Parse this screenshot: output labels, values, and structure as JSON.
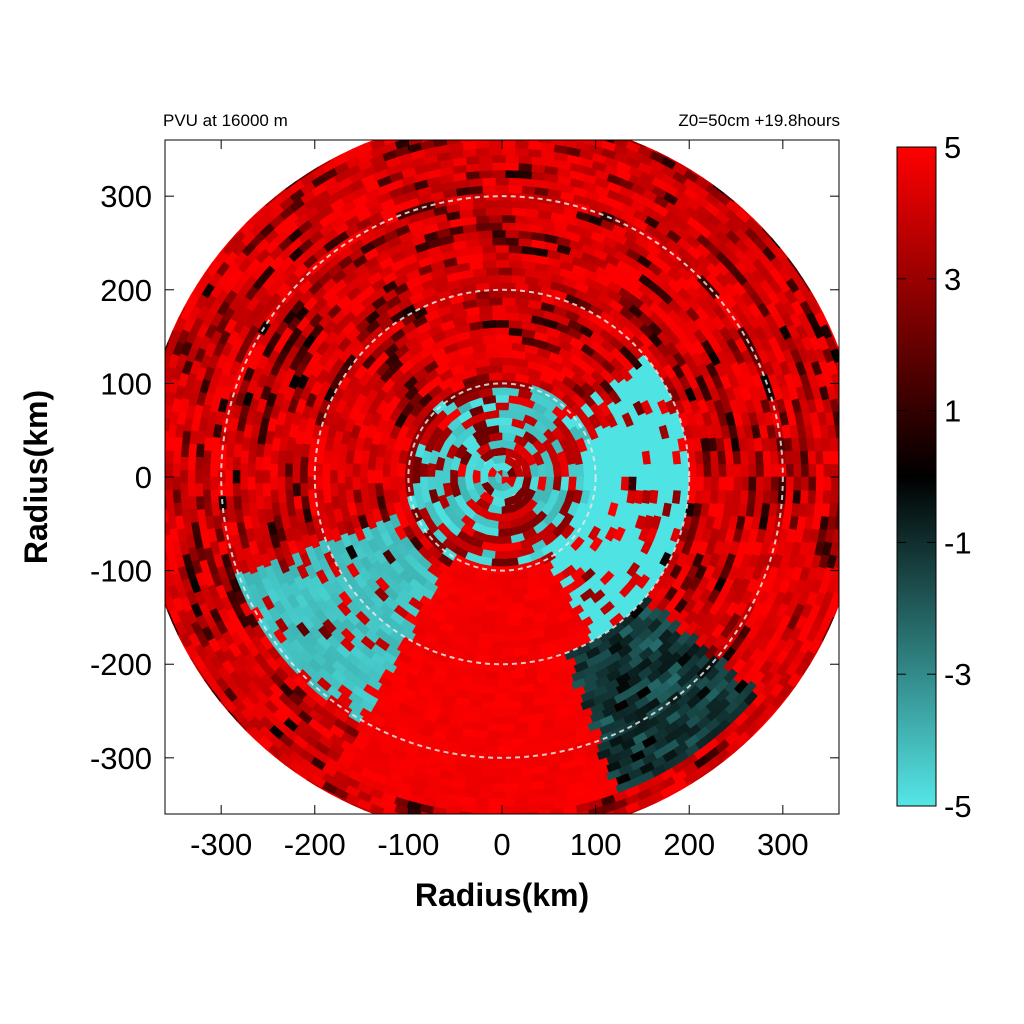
{
  "chart_data": {
    "type": "heatmap",
    "title_left": "PVU at 16000 m",
    "title_right": "Z0=50cm  +19.8hours",
    "xlabel": "Radius(km)",
    "ylabel": "Radius(km)",
    "xlim": [
      -360,
      360
    ],
    "ylim": [
      -360,
      360
    ],
    "xticks": [
      "-300",
      "-200",
      "-100",
      "0",
      "100",
      "200",
      "300"
    ],
    "yticks": [
      "300",
      "200",
      "100",
      "0",
      "-100",
      "-200",
      "-300"
    ],
    "domain_radius_km": 385,
    "range_rings_km": [
      100,
      200,
      300
    ],
    "colorbar": {
      "min": -5,
      "max": 5,
      "ticks": [
        "5",
        "3",
        "1",
        "-1",
        "-3",
        "-5"
      ],
      "colors": {
        "low": "#4fe3e3",
        "mid": "#000000",
        "high": "#ff0000"
      }
    },
    "field_features": [
      {
        "label": "inner core mixed positive/negative PV",
        "r_km": [
          0,
          100
        ],
        "value_range": [
          -5,
          5
        ]
      },
      {
        "label": "negative PV band, east",
        "azimuth_deg": [
          -60,
          40
        ],
        "r_km": [
          90,
          200
        ],
        "value": -5
      },
      {
        "label": "negative PV patches, southwest",
        "azimuth_deg": [
          200,
          250
        ],
        "r_km": [
          120,
          300
        ],
        "value": -4
      },
      {
        "label": "strong positive PV, south",
        "azimuth_deg": [
          240,
          300
        ],
        "r_km": [
          100,
          360
        ],
        "value": 5
      },
      {
        "label": "dark negative band, southeast",
        "azimuth_deg": [
          290,
          320
        ],
        "r_km": [
          200,
          360
        ],
        "value": -1
      }
    ]
  }
}
